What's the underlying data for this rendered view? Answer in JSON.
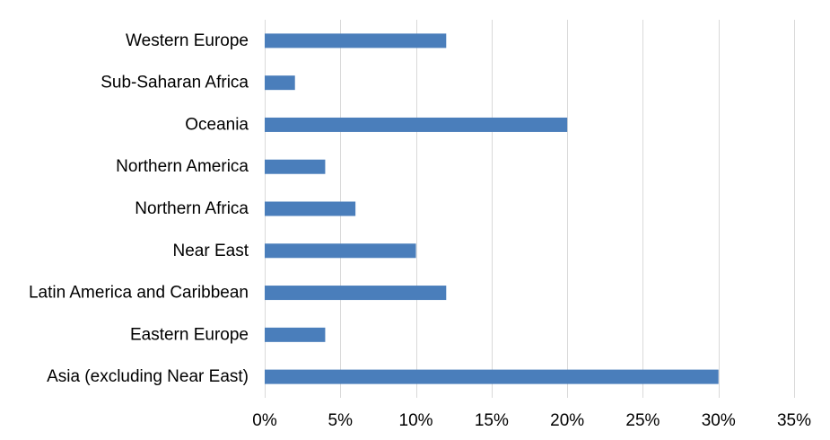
{
  "chart_data": {
    "type": "bar",
    "orientation": "horizontal",
    "categories": [
      "Western Europe",
      "Sub-Saharan Africa",
      "Oceania",
      "Northern America",
      "Northern Africa",
      "Near East",
      "Latin America and Caribbean",
      "Eastern Europe",
      "Asia (excluding Near East)"
    ],
    "values": [
      12,
      2,
      20,
      4,
      6,
      10,
      12,
      4,
      30
    ],
    "xlim": [
      0,
      35
    ],
    "x_ticks": [
      0,
      5,
      10,
      15,
      20,
      25,
      30,
      35
    ],
    "x_tick_labels": [
      "0%",
      "5%",
      "10%",
      "15%",
      "20%",
      "25%",
      "30%",
      "35%"
    ],
    "grid": "vertical",
    "bar_color": "#4a7ebb",
    "grid_color": "#d9d9d9",
    "title": "",
    "xlabel": "",
    "ylabel": ""
  }
}
